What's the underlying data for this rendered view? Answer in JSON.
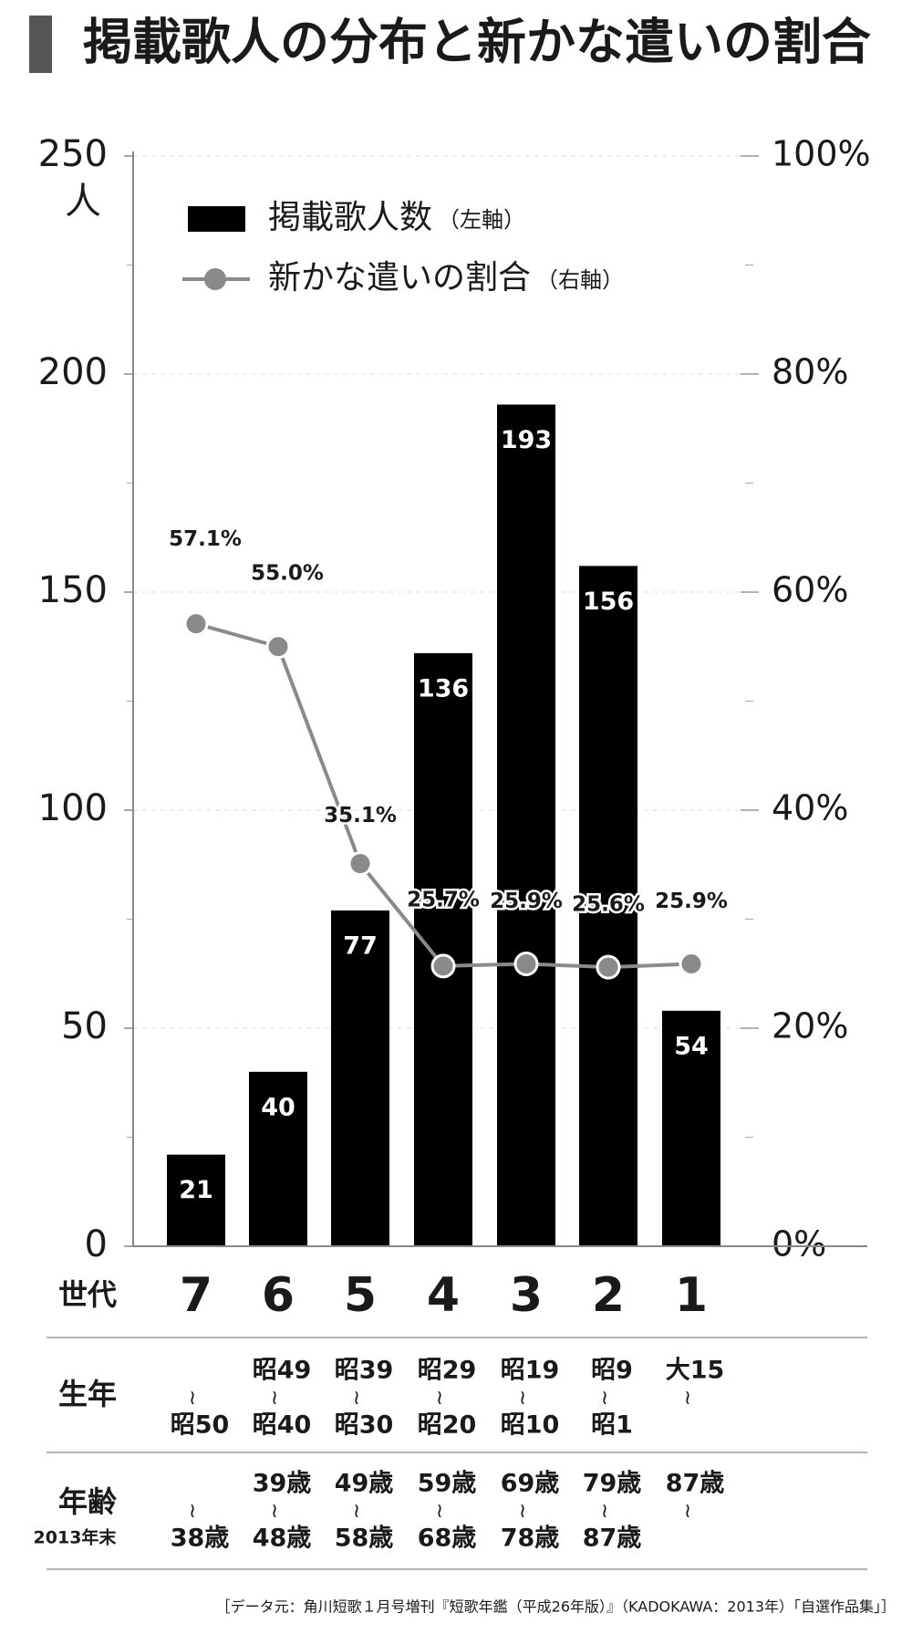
{
  "title": "掲載歌人の分布と新かな遣いの割合",
  "chart_data": {
    "type": "bar",
    "categories": [
      "7",
      "6",
      "5",
      "4",
      "3",
      "2",
      "1"
    ],
    "ylabel": "人",
    "ylim": [
      0,
      250
    ],
    "yticks": [
      0,
      50,
      100,
      150,
      200,
      250
    ],
    "yminorticks": [
      25,
      75,
      125,
      175,
      225
    ],
    "y2lim": [
      0,
      100
    ],
    "y2ticks": [
      {
        "value": 0,
        "label": "0%"
      },
      {
        "value": 20,
        "label": "20%"
      },
      {
        "value": 40,
        "label": "40%"
      },
      {
        "value": 60,
        "label": "60%"
      },
      {
        "value": 80,
        "label": "80%"
      },
      {
        "value": 100,
        "label": "100%"
      }
    ],
    "y2minorticks": [
      10,
      30,
      50,
      70,
      90
    ],
    "grid": true,
    "series": [
      {
        "name": "掲載歌人数",
        "legend_note": "（左軸）",
        "type": "bar",
        "color": "#000000",
        "values": [
          21,
          40,
          77,
          136,
          193,
          156,
          54
        ]
      },
      {
        "name": "新かな遣いの割合",
        "legend_note": "（右軸）",
        "type": "line",
        "axis": "y2",
        "color": "#8a8a8a",
        "values": [
          57.1,
          55.0,
          35.1,
          25.7,
          25.9,
          25.6,
          25.9
        ],
        "value_labels": [
          "57.1%",
          "55.0%",
          "35.1%",
          "25.7%",
          "25.9%",
          "25.6%",
          "25.9%"
        ]
      }
    ]
  },
  "table": {
    "generation_header": "世代",
    "birth_header": "生年",
    "age_header": "年齢",
    "age_subheader": "2013年末",
    "range_mark": "≀",
    "birth": [
      {
        "from": null,
        "to": "昭50"
      },
      {
        "from": "昭49",
        "to": "昭40"
      },
      {
        "from": "昭39",
        "to": "昭30"
      },
      {
        "from": "昭29",
        "to": "昭20"
      },
      {
        "from": "昭19",
        "to": "昭10"
      },
      {
        "from": "昭9",
        "to": "昭1"
      },
      {
        "from": "大15",
        "to": null
      }
    ],
    "age": [
      {
        "from": null,
        "to": "38歳"
      },
      {
        "from": "39歳",
        "to": "48歳"
      },
      {
        "from": "49歳",
        "to": "58歳"
      },
      {
        "from": "59歳",
        "to": "68歳"
      },
      {
        "from": "69歳",
        "to": "78歳"
      },
      {
        "from": "79歳",
        "to": "87歳"
      },
      {
        "from": "87歳",
        "to": null
      }
    ]
  },
  "source": "［データ元：角川短歌１月号増刊『短歌年鑑（平成26年版）』（KADOKAWA：2013年）「自選作品集」］"
}
